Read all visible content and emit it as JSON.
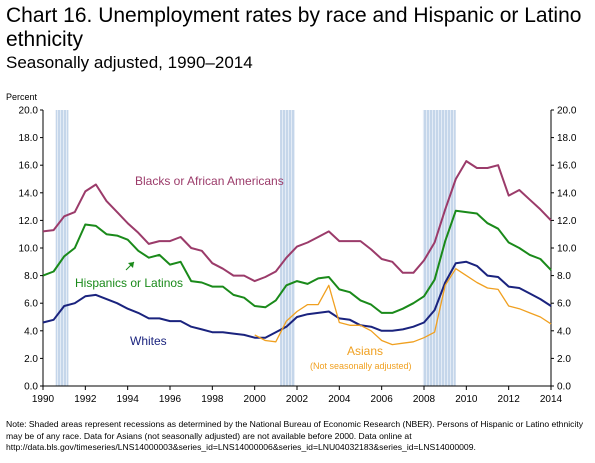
{
  "title": "Chart 16.  Unemployment rates by race and Hispanic or Latino ethnicity",
  "subtitle": "Seasonally adjusted, 1990–2014",
  "note": "Note:  Shaded areas represent recessions as determined by the National Bureau of Economic Research (NBER).  Persons of Hispanic or Latino ethnicity may be of any race.  Data for Asians (not seasonally adjusted) are not available before 2000.  Data online at http://data.bls.gov/timeseries/LNS14000003&series_id=LNS14000006&series_id=LNU04032183&series_id=LNS14000009.",
  "chart_data": {
    "type": "line",
    "ylabel": "Percent",
    "ylim": [
      0,
      20
    ],
    "yticks": [
      "0.0",
      "2.0",
      "4.0",
      "6.0",
      "8.0",
      "10.0",
      "12.0",
      "14.0",
      "16.0",
      "18.0",
      "20.0"
    ],
    "xlim": [
      1990,
      2014
    ],
    "xticks": [
      "1990",
      "1992",
      "1994",
      "1996",
      "1998",
      "2000",
      "2002",
      "2004",
      "2006",
      "2008",
      "2010",
      "2012",
      "2014"
    ],
    "recessions": [
      [
        1990.6,
        1991.2
      ],
      [
        2001.2,
        2001.9
      ],
      [
        2007.95,
        2009.5
      ]
    ],
    "grid": false,
    "series": [
      {
        "name": "Blacks or African Americans",
        "color": "#9b3b6a",
        "x": [
          1990,
          1990.5,
          1991,
          1991.5,
          1992,
          1992.5,
          1993,
          1993.5,
          1994,
          1994.5,
          1995,
          1995.5,
          1996,
          1996.5,
          1997,
          1997.5,
          1998,
          1998.5,
          1999,
          1999.5,
          2000,
          2000.5,
          2001,
          2001.5,
          2002,
          2002.5,
          2003,
          2003.5,
          2004,
          2004.5,
          2005,
          2005.5,
          2006,
          2006.5,
          2007,
          2007.5,
          2008,
          2008.5,
          2009,
          2009.5,
          2010,
          2010.5,
          2011,
          2011.5,
          2012,
          2012.5,
          2013,
          2013.5,
          2014
        ],
        "y": [
          11.2,
          11.3,
          12.3,
          12.6,
          14.1,
          14.6,
          13.4,
          12.6,
          11.8,
          11.1,
          10.3,
          10.5,
          10.5,
          10.8,
          10.0,
          9.8,
          8.9,
          8.5,
          8.0,
          8.0,
          7.6,
          7.9,
          8.3,
          9.3,
          10.1,
          10.4,
          10.8,
          11.2,
          10.5,
          10.5,
          10.5,
          9.9,
          9.2,
          9.0,
          8.2,
          8.2,
          9.1,
          10.4,
          12.8,
          15.0,
          16.3,
          15.8,
          15.8,
          16.0,
          13.8,
          14.2,
          13.5,
          12.8,
          12.0
        ]
      },
      {
        "name": "Hispanics or Latinos",
        "color": "#1a8a1a",
        "x": [
          1990,
          1990.5,
          1991,
          1991.5,
          1992,
          1992.5,
          1993,
          1993.5,
          1994,
          1994.5,
          1995,
          1995.5,
          1996,
          1996.5,
          1997,
          1997.5,
          1998,
          1998.5,
          1999,
          1999.5,
          2000,
          2000.5,
          2001,
          2001.5,
          2002,
          2002.5,
          2003,
          2003.5,
          2004,
          2004.5,
          2005,
          2005.5,
          2006,
          2006.5,
          2007,
          2007.5,
          2008,
          2008.5,
          2009,
          2009.5,
          2010,
          2010.5,
          2011,
          2011.5,
          2012,
          2012.5,
          2013,
          2013.5,
          2014
        ],
        "y": [
          8.0,
          8.3,
          9.4,
          10.0,
          11.7,
          11.6,
          11.0,
          10.9,
          10.6,
          9.8,
          9.3,
          9.5,
          8.8,
          9.0,
          7.6,
          7.5,
          7.2,
          7.2,
          6.6,
          6.4,
          5.8,
          5.7,
          6.2,
          7.3,
          7.6,
          7.4,
          7.8,
          7.9,
          7.0,
          6.8,
          6.2,
          5.9,
          5.3,
          5.3,
          5.6,
          6.0,
          6.5,
          7.7,
          10.5,
          12.7,
          12.6,
          12.5,
          11.8,
          11.4,
          10.4,
          10.0,
          9.5,
          9.2,
          8.4
        ]
      },
      {
        "name": "Whites",
        "color": "#1a237e",
        "x": [
          1990,
          1990.5,
          1991,
          1991.5,
          1992,
          1992.5,
          1993,
          1993.5,
          1994,
          1994.5,
          1995,
          1995.5,
          1996,
          1996.5,
          1997,
          1997.5,
          1998,
          1998.5,
          1999,
          1999.5,
          2000,
          2000.5,
          2001,
          2001.5,
          2002,
          2002.5,
          2003,
          2003.5,
          2004,
          2004.5,
          2005,
          2005.5,
          2006,
          2006.5,
          2007,
          2007.5,
          2008,
          2008.5,
          2009,
          2009.5,
          2010,
          2010.5,
          2011,
          2011.5,
          2012,
          2012.5,
          2013,
          2013.5,
          2014
        ],
        "y": [
          4.6,
          4.8,
          5.8,
          6.0,
          6.5,
          6.6,
          6.3,
          6.0,
          5.6,
          5.3,
          4.9,
          4.9,
          4.7,
          4.7,
          4.3,
          4.1,
          3.9,
          3.9,
          3.8,
          3.7,
          3.5,
          3.5,
          3.9,
          4.3,
          5.0,
          5.2,
          5.3,
          5.4,
          4.9,
          4.8,
          4.4,
          4.3,
          4.0,
          4.0,
          4.1,
          4.3,
          4.6,
          5.5,
          7.5,
          8.9,
          9.0,
          8.7,
          8.0,
          7.9,
          7.2,
          7.1,
          6.7,
          6.3,
          5.8
        ]
      },
      {
        "name": "Asians",
        "note": "(Not seasonally adjusted)",
        "color": "#f0a020",
        "x": [
          2000,
          2000.5,
          2001,
          2001.5,
          2002,
          2002.5,
          2003,
          2003.5,
          2004,
          2004.5,
          2005,
          2005.5,
          2006,
          2006.5,
          2007,
          2007.5,
          2008,
          2008.5,
          2009,
          2009.5,
          2010,
          2010.5,
          2011,
          2011.5,
          2012,
          2012.5,
          2013,
          2013.5,
          2014
        ],
        "y": [
          3.7,
          3.3,
          3.2,
          4.7,
          5.4,
          5.9,
          5.9,
          7.3,
          4.6,
          4.4,
          4.4,
          4.0,
          3.3,
          3.0,
          3.1,
          3.2,
          3.5,
          3.9,
          7.3,
          8.5,
          8.0,
          7.5,
          7.1,
          7.0,
          5.8,
          5.6,
          5.3,
          5.0,
          4.5
        ]
      }
    ]
  }
}
